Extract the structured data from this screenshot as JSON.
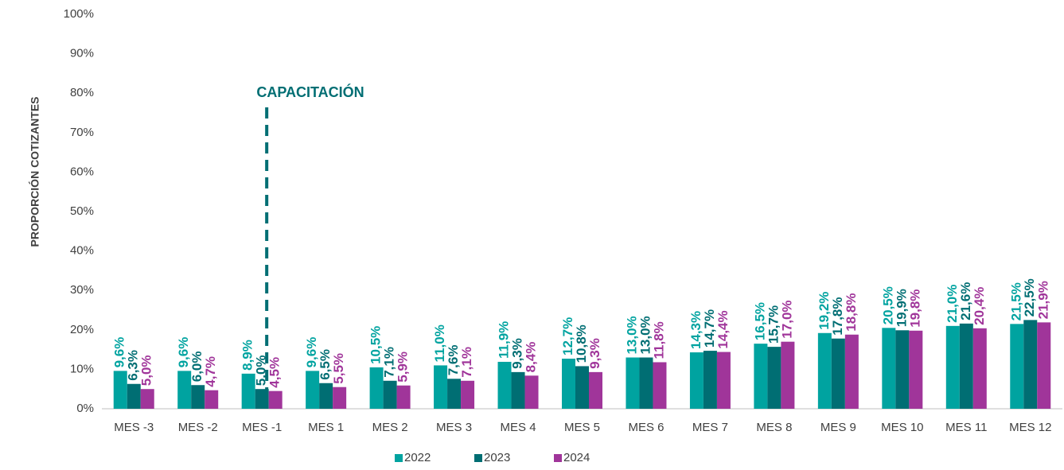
{
  "chart_data": {
    "type": "bar",
    "y_label": "PROPORCIÓN COTIZANTES",
    "annotation": "CAPACITACIÓN",
    "categories": [
      "MES -3",
      "MES -2",
      "MES -1",
      "MES 1",
      "MES 2",
      "MES 3",
      "MES 4",
      "MES 5",
      "MES 6",
      "MES 7",
      "MES 8",
      "MES 9",
      "MES 10",
      "MES 11",
      "MES 12"
    ],
    "series": [
      {
        "name": "2022",
        "color": "#00a3a0",
        "values": [
          9.6,
          9.6,
          8.9,
          9.6,
          10.5,
          11.0,
          11.9,
          12.7,
          13.0,
          14.3,
          16.5,
          19.2,
          20.5,
          21.0,
          21.5
        ],
        "value_labels": [
          "9,6%",
          "9,6%",
          "8,9%",
          "9,6%",
          "10,5%",
          "11,0%",
          "11,9%",
          "12,7%",
          "13,0%",
          "14,3%",
          "16,5%",
          "19,2%",
          "20,5%",
          "21,0%",
          "21,5%"
        ]
      },
      {
        "name": "2023",
        "color": "#006e73",
        "values": [
          6.3,
          6.0,
          5.0,
          6.5,
          7.1,
          7.6,
          9.3,
          10.8,
          13.0,
          14.7,
          15.7,
          17.8,
          19.9,
          21.6,
          22.5
        ],
        "value_labels": [
          "6,3%",
          "6,0%",
          "5,0%",
          "6,5%",
          "7,1%",
          "7,6%",
          "9,3%",
          "10,8%",
          "13,0%",
          "14,7%",
          "15,7%",
          "17,8%",
          "19,9%",
          "21,6%",
          "22,5%"
        ]
      },
      {
        "name": "2024",
        "color": "#a0359a",
        "values": [
          5.0,
          4.7,
          4.5,
          5.5,
          5.9,
          7.1,
          8.4,
          9.3,
          11.8,
          14.4,
          17.0,
          18.8,
          19.8,
          20.4,
          21.9
        ],
        "value_labels": [
          "5,0%",
          "4,7%",
          "4,5%",
          "5,5%",
          "5,9%",
          "7,1%",
          "8,4%",
          "9,3%",
          "11,8%",
          "14,4%",
          "17,0%",
          "18,8%",
          "19,8%",
          "20,4%",
          "21,9%"
        ]
      }
    ],
    "ylim": [
      0,
      100
    ],
    "yticks": [
      {
        "value": 0,
        "label": "0%"
      },
      {
        "value": 10,
        "label": "10%"
      },
      {
        "value": 20,
        "label": "20%"
      },
      {
        "value": 30,
        "label": "30%"
      },
      {
        "value": 40,
        "label": "40%"
      },
      {
        "value": 50,
        "label": "50%"
      },
      {
        "value": 60,
        "label": "60%"
      },
      {
        "value": 70,
        "label": "70%"
      },
      {
        "value": 80,
        "label": "80%"
      },
      {
        "value": 90,
        "label": "90%"
      },
      {
        "value": 100,
        "label": "100%"
      }
    ],
    "grid": false
  }
}
